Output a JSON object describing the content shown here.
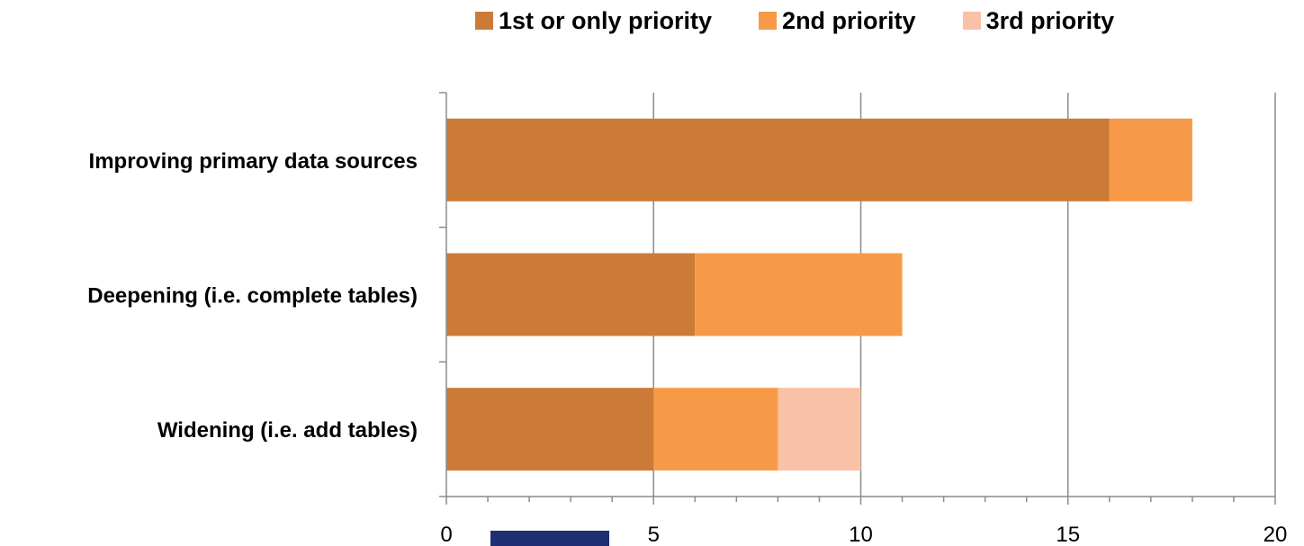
{
  "chart_data": {
    "type": "bar",
    "orientation": "horizontal",
    "stacked": true,
    "categories": [
      "Improving primary data sources",
      "Deepening (i.e. complete tables)",
      "Widening (i.e. add tables)"
    ],
    "series": [
      {
        "name": "1st or only priority",
        "color": "#cc7a38",
        "values": [
          16,
          6,
          5
        ]
      },
      {
        "name": "2nd priority",
        "color": "#f79a48",
        "values": [
          2,
          5,
          3
        ]
      },
      {
        "name": "3rd priority",
        "color": "#f9c2a6",
        "values": [
          0,
          0,
          2
        ]
      }
    ],
    "xlim": [
      0,
      20
    ],
    "xticks": [
      "0",
      "5",
      "10",
      "15",
      "20"
    ],
    "xlabel": "",
    "ylabel": "",
    "grid": "vertical",
    "legend_position": "top"
  }
}
